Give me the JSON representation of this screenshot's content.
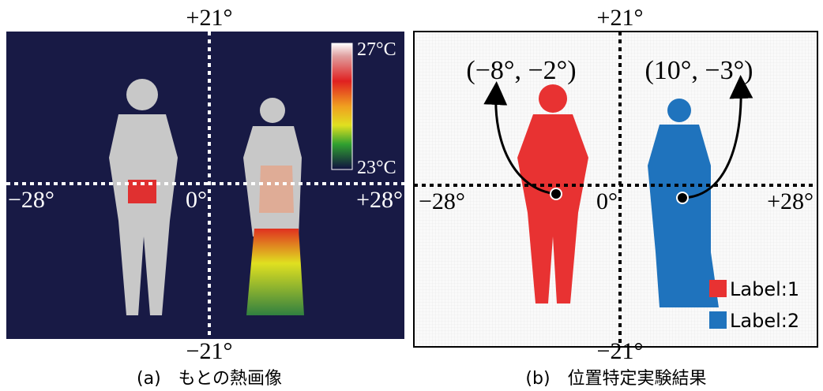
{
  "panels": [
    {
      "caption": "(a)　もとの熱画像",
      "axis_labels": {
        "top": "+21°",
        "bottom": "−21°",
        "left": "−28°",
        "right": "+28°",
        "center": "0°"
      },
      "colorbar": {
        "max": "27°C",
        "min": "23°C"
      }
    },
    {
      "caption": "(b)　位置特定実験結果",
      "axis_labels": {
        "top": "+21°",
        "bottom": "−21°",
        "left": "−28°",
        "right": "+28°",
        "center": "0°"
      },
      "points": [
        "(−8°, −2°)",
        "(10°, −3°)"
      ],
      "legend": [
        "Label:1",
        "Label:2"
      ]
    }
  ]
}
